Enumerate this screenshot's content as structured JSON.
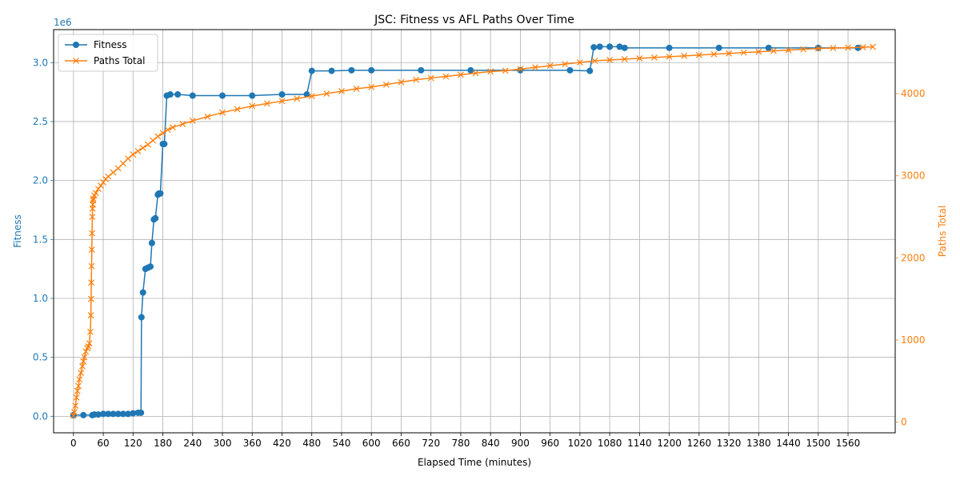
{
  "chart_data": {
    "type": "line",
    "title": "JSC: Fitness vs AFL Paths Over Time",
    "xlabel": "Elapsed Time (minutes)",
    "ylabel_left": "Fitness",
    "ylabel_right": "Paths Total",
    "offset_label_left": "1e6",
    "colors": {
      "fitness": "#1f77b4",
      "paths": "#ff7f0e",
      "grid": "#b0b0b0"
    },
    "xlim": [
      -40,
      1655
    ],
    "ylim_left": [
      -0.14,
      3.28
    ],
    "ylim_right": [
      -130,
      4780
    ],
    "x_ticks": [
      0,
      60,
      120,
      180,
      240,
      300,
      360,
      420,
      480,
      540,
      600,
      660,
      720,
      780,
      840,
      900,
      960,
      1020,
      1080,
      1140,
      1200,
      1260,
      1320,
      1380,
      1440,
      1500,
      1560
    ],
    "y_ticks_left": [
      0.0,
      0.5,
      1.0,
      1.5,
      2.0,
      2.5,
      3.0
    ],
    "y_tick_labels_left": [
      "0.0",
      "0.5",
      "1.0",
      "1.5",
      "2.0",
      "2.5",
      "3.0"
    ],
    "y_ticks_right": [
      0,
      1000,
      2000,
      3000,
      4000
    ],
    "legend": {
      "position": "upper-left",
      "entries": [
        "Fitness",
        "Paths Total"
      ]
    },
    "grid": true,
    "series": [
      {
        "name": "Fitness",
        "axis": "left",
        "marker": "circle",
        "unit_scale": "1e6",
        "x": [
          0,
          20,
          38,
          42,
          50,
          60,
          70,
          80,
          90,
          100,
          110,
          120,
          130,
          136,
          137,
          140,
          145,
          150,
          155,
          158,
          162,
          165,
          170,
          172,
          175,
          180,
          183,
          188,
          195,
          210,
          240,
          300,
          360,
          420,
          470,
          480,
          520,
          560,
          600,
          700,
          800,
          900,
          1000,
          1040,
          1048,
          1060,
          1080,
          1100,
          1110,
          1200,
          1300,
          1400,
          1500,
          1580
        ],
        "y": [
          0.01,
          0.01,
          0.01,
          0.015,
          0.015,
          0.02,
          0.02,
          0.02,
          0.02,
          0.02,
          0.02,
          0.025,
          0.03,
          0.03,
          0.84,
          1.05,
          1.25,
          1.26,
          1.27,
          1.47,
          1.67,
          1.68,
          1.88,
          1.89,
          1.89,
          2.31,
          2.31,
          2.72,
          2.73,
          2.73,
          2.72,
          2.72,
          2.72,
          2.73,
          2.73,
          2.93,
          2.93,
          2.935,
          2.935,
          2.935,
          2.935,
          2.935,
          2.935,
          2.93,
          3.13,
          3.135,
          3.135,
          3.135,
          3.125,
          3.125,
          3.125,
          3.125,
          3.125,
          3.125
        ]
      },
      {
        "name": "Paths Total",
        "axis": "right",
        "marker": "x",
        "x": [
          0,
          2,
          4,
          6,
          8,
          10,
          12,
          15,
          18,
          20,
          22,
          25,
          28,
          30,
          32,
          34,
          35,
          35.5,
          36,
          36.5,
          37,
          37.5,
          38,
          38.5,
          39,
          39.5,
          40,
          42,
          45,
          50,
          55,
          60,
          65,
          70,
          80,
          90,
          100,
          110,
          120,
          130,
          140,
          150,
          160,
          170,
          180,
          190,
          200,
          220,
          240,
          270,
          300,
          330,
          360,
          390,
          420,
          450,
          480,
          510,
          540,
          570,
          600,
          630,
          660,
          690,
          720,
          750,
          780,
          810,
          840,
          870,
          900,
          930,
          960,
          990,
          1020,
          1050,
          1080,
          1110,
          1140,
          1170,
          1200,
          1230,
          1260,
          1290,
          1320,
          1350,
          1380,
          1410,
          1440,
          1470,
          1500,
          1530,
          1560,
          1590,
          1610
        ],
        "y": [
          80,
          120,
          200,
          300,
          380,
          440,
          520,
          600,
          680,
          740,
          790,
          860,
          900,
          920,
          960,
          1100,
          1300,
          1500,
          1700,
          1900,
          2100,
          2300,
          2500,
          2600,
          2650,
          2700,
          2720,
          2760,
          2790,
          2840,
          2880,
          2920,
          2960,
          2990,
          3040,
          3090,
          3150,
          3210,
          3260,
          3300,
          3340,
          3380,
          3430,
          3480,
          3520,
          3560,
          3590,
          3630,
          3670,
          3720,
          3770,
          3810,
          3850,
          3880,
          3910,
          3940,
          3970,
          4000,
          4030,
          4060,
          4080,
          4110,
          4140,
          4170,
          4190,
          4210,
          4230,
          4250,
          4270,
          4280,
          4300,
          4320,
          4340,
          4360,
          4380,
          4400,
          4410,
          4420,
          4430,
          4440,
          4450,
          4460,
          4470,
          4480,
          4490,
          4500,
          4510,
          4520,
          4530,
          4540,
          4550,
          4555,
          4560,
          4565,
          4570
        ]
      }
    ]
  }
}
